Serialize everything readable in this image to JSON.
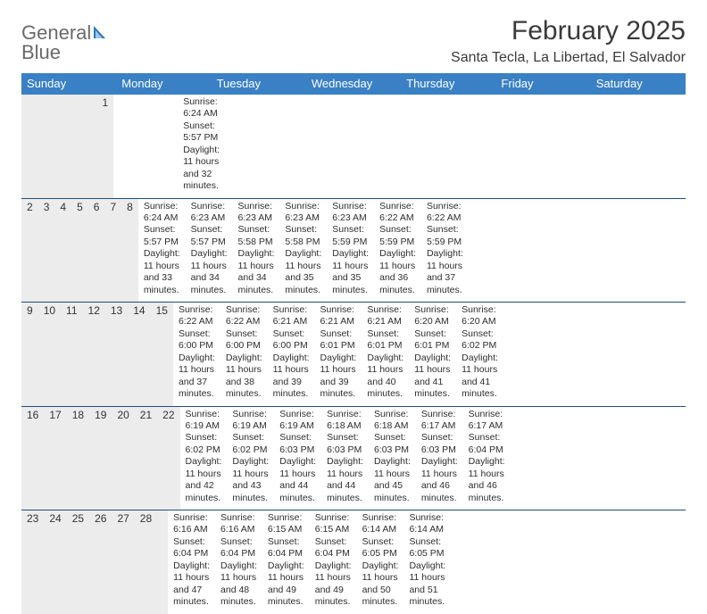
{
  "logo": {
    "line1": "General",
    "line2": "Blue"
  },
  "title": "February 2025",
  "subtitle": "Santa Tecla, La Libertad, El Salvador",
  "colors": {
    "header_bg": "#3a80c4",
    "header_text": "#ffffff",
    "week_divider": "#1f4e79",
    "daynum_bg": "#ececec",
    "logo_gray": "#6a6a6a",
    "logo_blue": "#2f77bb",
    "text": "#2e2e2e"
  },
  "days_of_week": [
    "Sunday",
    "Monday",
    "Tuesday",
    "Wednesday",
    "Thursday",
    "Friday",
    "Saturday"
  ],
  "weeks": [
    [
      {
        "n": "",
        "l1": "",
        "l2": "",
        "l3": "",
        "l4": ""
      },
      {
        "n": "",
        "l1": "",
        "l2": "",
        "l3": "",
        "l4": ""
      },
      {
        "n": "",
        "l1": "",
        "l2": "",
        "l3": "",
        "l4": ""
      },
      {
        "n": "",
        "l1": "",
        "l2": "",
        "l3": "",
        "l4": ""
      },
      {
        "n": "",
        "l1": "",
        "l2": "",
        "l3": "",
        "l4": ""
      },
      {
        "n": "",
        "l1": "",
        "l2": "",
        "l3": "",
        "l4": ""
      },
      {
        "n": "1",
        "l1": "Sunrise: 6:24 AM",
        "l2": "Sunset: 5:57 PM",
        "l3": "Daylight: 11 hours",
        "l4": "and 32 minutes."
      }
    ],
    [
      {
        "n": "2",
        "l1": "Sunrise: 6:24 AM",
        "l2": "Sunset: 5:57 PM",
        "l3": "Daylight: 11 hours",
        "l4": "and 33 minutes."
      },
      {
        "n": "3",
        "l1": "Sunrise: 6:23 AM",
        "l2": "Sunset: 5:57 PM",
        "l3": "Daylight: 11 hours",
        "l4": "and 34 minutes."
      },
      {
        "n": "4",
        "l1": "Sunrise: 6:23 AM",
        "l2": "Sunset: 5:58 PM",
        "l3": "Daylight: 11 hours",
        "l4": "and 34 minutes."
      },
      {
        "n": "5",
        "l1": "Sunrise: 6:23 AM",
        "l2": "Sunset: 5:58 PM",
        "l3": "Daylight: 11 hours",
        "l4": "and 35 minutes."
      },
      {
        "n": "6",
        "l1": "Sunrise: 6:23 AM",
        "l2": "Sunset: 5:59 PM",
        "l3": "Daylight: 11 hours",
        "l4": "and 35 minutes."
      },
      {
        "n": "7",
        "l1": "Sunrise: 6:22 AM",
        "l2": "Sunset: 5:59 PM",
        "l3": "Daylight: 11 hours",
        "l4": "and 36 minutes."
      },
      {
        "n": "8",
        "l1": "Sunrise: 6:22 AM",
        "l2": "Sunset: 5:59 PM",
        "l3": "Daylight: 11 hours",
        "l4": "and 37 minutes."
      }
    ],
    [
      {
        "n": "9",
        "l1": "Sunrise: 6:22 AM",
        "l2": "Sunset: 6:00 PM",
        "l3": "Daylight: 11 hours",
        "l4": "and 37 minutes."
      },
      {
        "n": "10",
        "l1": "Sunrise: 6:22 AM",
        "l2": "Sunset: 6:00 PM",
        "l3": "Daylight: 11 hours",
        "l4": "and 38 minutes."
      },
      {
        "n": "11",
        "l1": "Sunrise: 6:21 AM",
        "l2": "Sunset: 6:00 PM",
        "l3": "Daylight: 11 hours",
        "l4": "and 39 minutes."
      },
      {
        "n": "12",
        "l1": "Sunrise: 6:21 AM",
        "l2": "Sunset: 6:01 PM",
        "l3": "Daylight: 11 hours",
        "l4": "and 39 minutes."
      },
      {
        "n": "13",
        "l1": "Sunrise: 6:21 AM",
        "l2": "Sunset: 6:01 PM",
        "l3": "Daylight: 11 hours",
        "l4": "and 40 minutes."
      },
      {
        "n": "14",
        "l1": "Sunrise: 6:20 AM",
        "l2": "Sunset: 6:01 PM",
        "l3": "Daylight: 11 hours",
        "l4": "and 41 minutes."
      },
      {
        "n": "15",
        "l1": "Sunrise: 6:20 AM",
        "l2": "Sunset: 6:02 PM",
        "l3": "Daylight: 11 hours",
        "l4": "and 41 minutes."
      }
    ],
    [
      {
        "n": "16",
        "l1": "Sunrise: 6:19 AM",
        "l2": "Sunset: 6:02 PM",
        "l3": "Daylight: 11 hours",
        "l4": "and 42 minutes."
      },
      {
        "n": "17",
        "l1": "Sunrise: 6:19 AM",
        "l2": "Sunset: 6:02 PM",
        "l3": "Daylight: 11 hours",
        "l4": "and 43 minutes."
      },
      {
        "n": "18",
        "l1": "Sunrise: 6:19 AM",
        "l2": "Sunset: 6:03 PM",
        "l3": "Daylight: 11 hours",
        "l4": "and 44 minutes."
      },
      {
        "n": "19",
        "l1": "Sunrise: 6:18 AM",
        "l2": "Sunset: 6:03 PM",
        "l3": "Daylight: 11 hours",
        "l4": "and 44 minutes."
      },
      {
        "n": "20",
        "l1": "Sunrise: 6:18 AM",
        "l2": "Sunset: 6:03 PM",
        "l3": "Daylight: 11 hours",
        "l4": "and 45 minutes."
      },
      {
        "n": "21",
        "l1": "Sunrise: 6:17 AM",
        "l2": "Sunset: 6:03 PM",
        "l3": "Daylight: 11 hours",
        "l4": "and 46 minutes."
      },
      {
        "n": "22",
        "l1": "Sunrise: 6:17 AM",
        "l2": "Sunset: 6:04 PM",
        "l3": "Daylight: 11 hours",
        "l4": "and 46 minutes."
      }
    ],
    [
      {
        "n": "23",
        "l1": "Sunrise: 6:16 AM",
        "l2": "Sunset: 6:04 PM",
        "l3": "Daylight: 11 hours",
        "l4": "and 47 minutes."
      },
      {
        "n": "24",
        "l1": "Sunrise: 6:16 AM",
        "l2": "Sunset: 6:04 PM",
        "l3": "Daylight: 11 hours",
        "l4": "and 48 minutes."
      },
      {
        "n": "25",
        "l1": "Sunrise: 6:15 AM",
        "l2": "Sunset: 6:04 PM",
        "l3": "Daylight: 11 hours",
        "l4": "and 49 minutes."
      },
      {
        "n": "26",
        "l1": "Sunrise: 6:15 AM",
        "l2": "Sunset: 6:04 PM",
        "l3": "Daylight: 11 hours",
        "l4": "and 49 minutes."
      },
      {
        "n": "27",
        "l1": "Sunrise: 6:14 AM",
        "l2": "Sunset: 6:05 PM",
        "l3": "Daylight: 11 hours",
        "l4": "and 50 minutes."
      },
      {
        "n": "28",
        "l1": "Sunrise: 6:14 AM",
        "l2": "Sunset: 6:05 PM",
        "l3": "Daylight: 11 hours",
        "l4": "and 51 minutes."
      },
      {
        "n": "",
        "l1": "",
        "l2": "",
        "l3": "",
        "l4": ""
      }
    ]
  ]
}
